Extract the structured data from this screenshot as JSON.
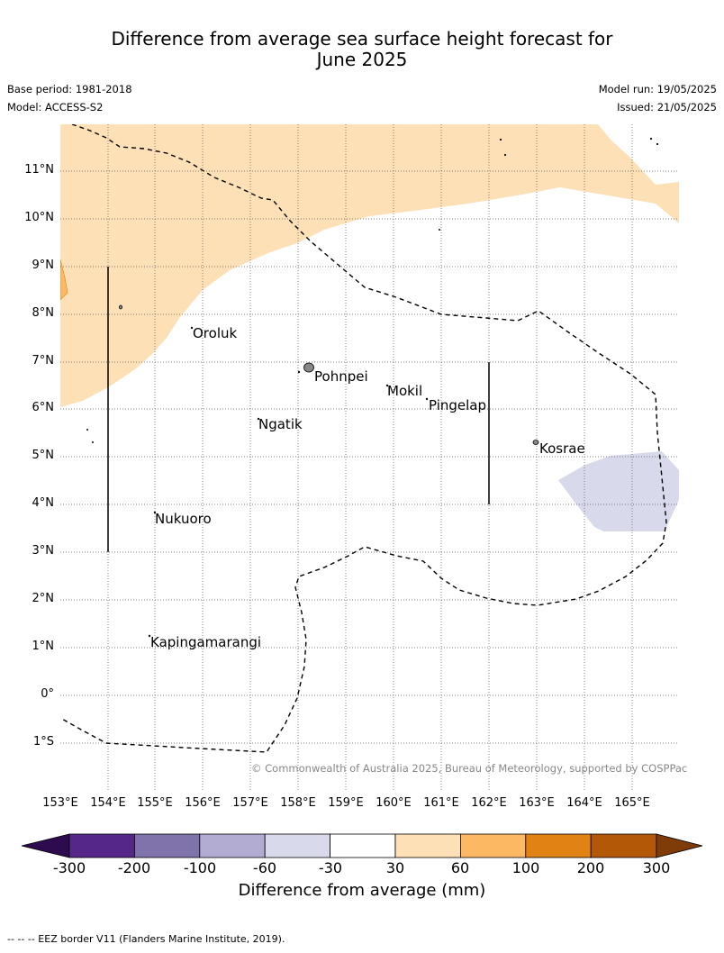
{
  "title_line1": "Difference from average sea surface height forecast for",
  "title_line2": "June 2025",
  "base_period": "Base period: 1981-2018",
  "model": "Model: ACCESS-S2",
  "model_run": "Model run: 19/05/2025",
  "issued": "Issued: 21/05/2025",
  "lat_labels": [
    "11°N",
    "10°N",
    "9°N",
    "8°N",
    "7°N",
    "6°N",
    "5°N",
    "4°N",
    "3°N",
    "2°N",
    "1°N",
    "0°",
    "1°S"
  ],
  "lon_labels": [
    "153°E",
    "154°E",
    "155°E",
    "156°E",
    "157°E",
    "158°E",
    "159°E",
    "160°E",
    "161°E",
    "162°E",
    "163°E",
    "164°E",
    "165°E"
  ],
  "places": {
    "oroluk": "Oroluk",
    "pohnpei": "Pohnpei",
    "mokil": "Mokil",
    "pingelap": "Pingelap",
    "ngatik": "Ngatik",
    "kosrae": "Kosrae",
    "nukuoro": "Nukuoro",
    "kapingamarangi": "Kapingamarangi"
  },
  "copyright": "© Commonwealth of Australia 2025, Bureau of Meteorology, supported by COSPPac",
  "colorbar": {
    "ticks": [
      "-300",
      "-200",
      "-100",
      "-60",
      "-30",
      "30",
      "60",
      "100",
      "200",
      "300"
    ],
    "colors": [
      "#2e0b4f",
      "#542788",
      "#8073ac",
      "#b2abd2",
      "#d8daeb",
      "#ffffff",
      "#fee0b6",
      "#fdb863",
      "#e08214",
      "#b35806",
      "#7f3b08"
    ],
    "title": "Difference from average (mm)"
  },
  "footer": "--  --  -- EEZ border V11 (Flanders Marine Institute, 2019).",
  "colors": {
    "positive_30_60": "#fee0b6",
    "positive_60_100": "#fdb863",
    "negative_30_60": "#d8daeb",
    "land": "#888888"
  }
}
